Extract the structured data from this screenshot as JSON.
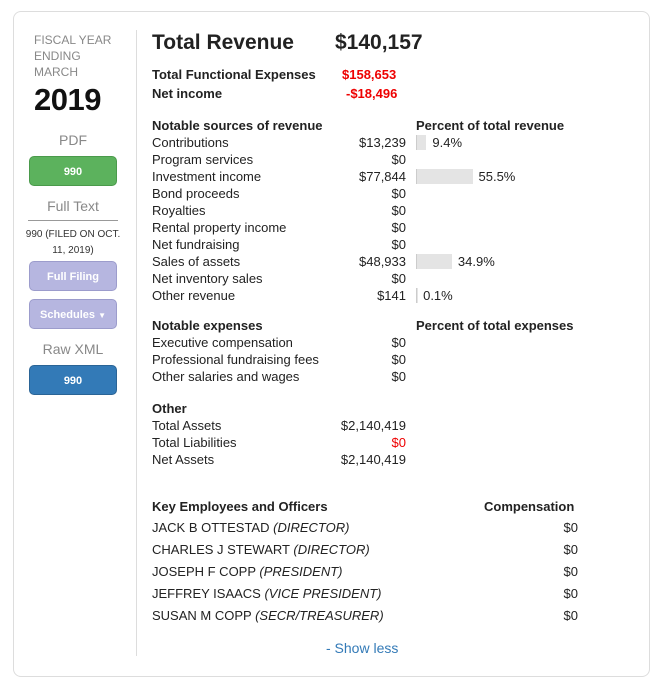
{
  "sidebar": {
    "fiscal_label": "FISCAL YEAR ENDING MARCH",
    "year": "2019",
    "pdf_label": "PDF",
    "pdf_button": "990",
    "full_text_label": "Full Text",
    "filed_text": "990 (FILED ON OCT. 11, 2019)",
    "full_filing_button": "Full Filing",
    "schedules_button": "Schedules",
    "raw_xml_label": "Raw XML",
    "xml_button": "990"
  },
  "summary": {
    "total_revenue_label": "Total Revenue",
    "total_revenue": "$140,157",
    "expenses_label": "Total Functional Expenses",
    "expenses": "$158,653",
    "net_income_label": "Net income",
    "net_income": "-$18,496"
  },
  "revenue": {
    "header": "Notable sources of revenue",
    "pct_header": "Percent of total revenue",
    "items": [
      {
        "label": "Contributions",
        "value": "$13,239",
        "pct": 9.4,
        "pct_text": "9.4%"
      },
      {
        "label": "Program services",
        "value": "$0"
      },
      {
        "label": "Investment income",
        "value": "$77,844",
        "pct": 55.5,
        "pct_text": "55.5%"
      },
      {
        "label": "Bond proceeds",
        "value": "$0"
      },
      {
        "label": "Royalties",
        "value": "$0"
      },
      {
        "label": "Rental property income",
        "value": "$0"
      },
      {
        "label": "Net fundraising",
        "value": "$0"
      },
      {
        "label": "Sales of assets",
        "value": "$48,933",
        "pct": 34.9,
        "pct_text": "34.9%"
      },
      {
        "label": "Net inventory sales",
        "value": "$0"
      },
      {
        "label": "Other revenue",
        "value": "$141",
        "pct": 0.1,
        "pct_text": "0.1%"
      }
    ]
  },
  "expenses": {
    "header": "Notable expenses",
    "pct_header": "Percent of total expenses",
    "items": [
      {
        "label": "Executive compensation",
        "value": "$0"
      },
      {
        "label": "Professional fundraising fees",
        "value": "$0"
      },
      {
        "label": "Other salaries and wages",
        "value": "$0"
      }
    ]
  },
  "other": {
    "header": "Other",
    "items": [
      {
        "label": "Total Assets",
        "value": "$2,140,419"
      },
      {
        "label": "Total Liabilities",
        "value": "$0",
        "red": true
      },
      {
        "label": "Net Assets",
        "value": "$2,140,419"
      }
    ]
  },
  "employees": {
    "header": "Key Employees and Officers",
    "comp_header": "Compensation",
    "items": [
      {
        "name": "JACK B OTTESTAD",
        "title": "(DIRECTOR)",
        "comp": "$0"
      },
      {
        "name": "CHARLES J STEWART",
        "title": "(DIRECTOR)",
        "comp": "$0"
      },
      {
        "name": "JOSEPH F COPP",
        "title": "(PRESIDENT)",
        "comp": "$0"
      },
      {
        "name": "JEFFREY ISAACS",
        "title": "(VICE PRESIDENT)",
        "comp": "$0"
      },
      {
        "name": "SUSAN M COPP",
        "title": "(SECR/TREASURER)",
        "comp": "$0"
      }
    ]
  },
  "show_less": "- Show less"
}
